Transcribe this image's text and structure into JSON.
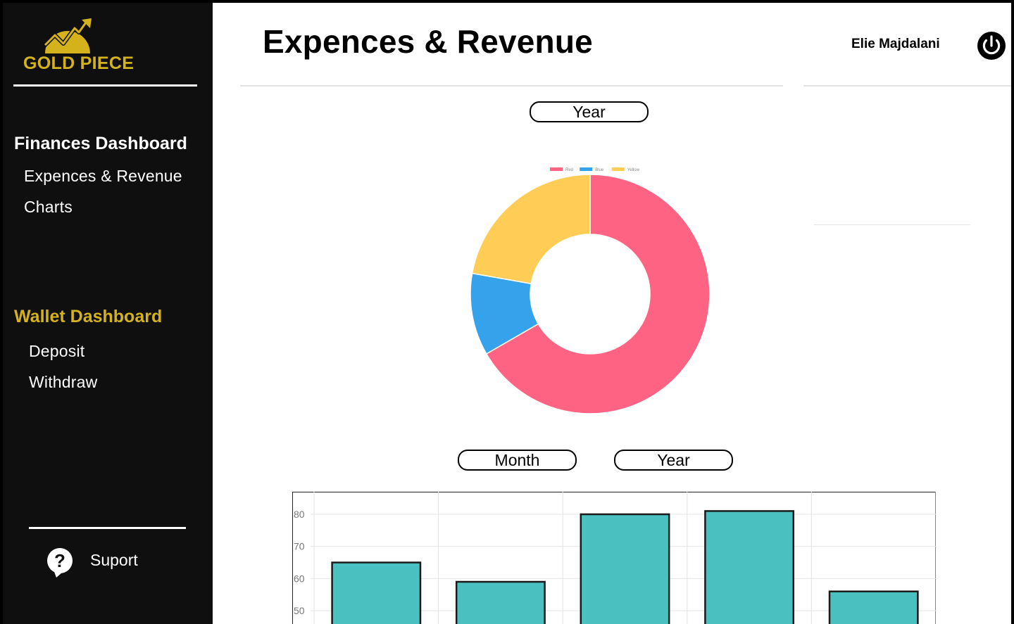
{
  "brand": {
    "name": "GOLD PIECE",
    "accent": "#d4b21c"
  },
  "sidebar": {
    "sections": [
      {
        "title": "Finances Dashboard",
        "items": [
          "Expences & Revenue",
          "Charts"
        ]
      },
      {
        "title": "Wallet Dashboard",
        "items": [
          "Deposit",
          "Withdraw"
        ]
      }
    ],
    "support_label": "Suport"
  },
  "header": {
    "title": "Expences & Revenue",
    "user_name": "Elie Majdalani",
    "power_icon": "power-icon"
  },
  "controls": {
    "donut_period": "Year",
    "bar_month": "Month",
    "bar_year": "Year"
  },
  "chart_data": [
    {
      "type": "pie",
      "variant": "doughnut",
      "labels": [
        "Red",
        "Blue",
        "Yellow"
      ],
      "values": [
        300,
        50,
        100
      ],
      "colors": [
        "#ff6384",
        "#36a2eb",
        "#ffcd56"
      ],
      "legend": "top"
    },
    {
      "type": "bar",
      "categories": [
        "",
        "",
        "",
        "",
        ""
      ],
      "values": [
        65,
        59,
        80,
        81,
        56
      ],
      "color": "#4bc0c0",
      "border_color": "#1a1a1a",
      "y_ticks": [
        50,
        60,
        70,
        80
      ],
      "ylim": [
        45,
        87
      ],
      "grid": true
    }
  ]
}
